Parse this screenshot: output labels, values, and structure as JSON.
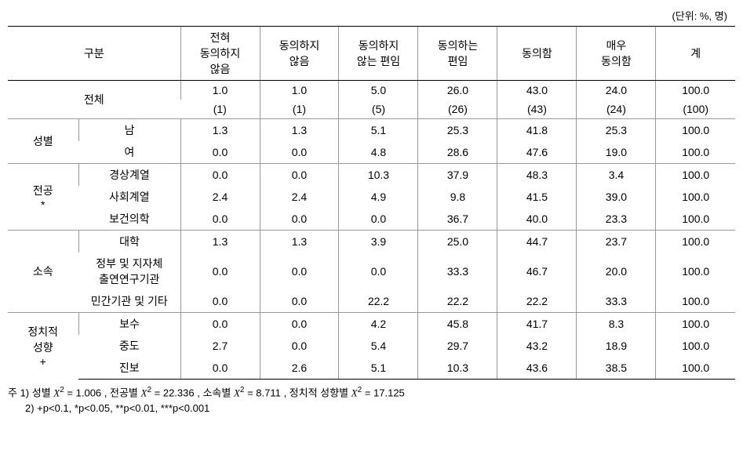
{
  "unit_label": "(단위: %, 명)",
  "headers": {
    "category": "구분",
    "c1": "전혀\n동의하지\n않음",
    "c2": "동의하지\n않음",
    "c3": "동의하지\n않는 편임",
    "c4": "동의하는\n편임",
    "c5": "동의함",
    "c6": "매우\n동의함",
    "c7": "계"
  },
  "total_label": "전체",
  "total_pct": [
    "1.0",
    "1.0",
    "5.0",
    "26.0",
    "43.0",
    "24.0",
    "100.0"
  ],
  "total_n": [
    "(1)",
    "(1)",
    "(5)",
    "(26)",
    "(43)",
    "(24)",
    "(100)"
  ],
  "groups": [
    {
      "label": "성별",
      "rows": [
        {
          "sub": "남",
          "v": [
            "1.3",
            "1.3",
            "5.1",
            "25.3",
            "41.8",
            "25.3",
            "100.0"
          ]
        },
        {
          "sub": "여",
          "v": [
            "0.0",
            "0.0",
            "4.8",
            "28.6",
            "47.6",
            "19.0",
            "100.0"
          ]
        }
      ]
    },
    {
      "label": "전공\n*",
      "rows": [
        {
          "sub": "경상계열",
          "v": [
            "0.0",
            "0.0",
            "10.3",
            "37.9",
            "48.3",
            "3.4",
            "100.0"
          ]
        },
        {
          "sub": "사회계열",
          "v": [
            "2.4",
            "2.4",
            "4.9",
            "9.8",
            "41.5",
            "39.0",
            "100.0"
          ]
        },
        {
          "sub": "보건의학",
          "v": [
            "0.0",
            "0.0",
            "0.0",
            "36.7",
            "40.0",
            "23.3",
            "100.0"
          ]
        }
      ]
    },
    {
      "label": "소속",
      "rows": [
        {
          "sub": "대학",
          "v": [
            "1.3",
            "1.3",
            "3.9",
            "25.0",
            "44.7",
            "23.7",
            "100.0"
          ]
        },
        {
          "sub": "정부 및 지자체\n출연연구기관",
          "v": [
            "0.0",
            "0.0",
            "0.0",
            "33.3",
            "46.7",
            "20.0",
            "100.0"
          ]
        },
        {
          "sub": "민간기관 및 기타",
          "v": [
            "0.0",
            "0.0",
            "22.2",
            "22.2",
            "22.2",
            "33.3",
            "100.0"
          ]
        }
      ]
    },
    {
      "label": "정치적\n성향\n+",
      "rows": [
        {
          "sub": "보수",
          "v": [
            "0.0",
            "0.0",
            "4.2",
            "45.8",
            "41.7",
            "8.3",
            "100.0"
          ]
        },
        {
          "sub": "중도",
          "v": [
            "2.7",
            "0.0",
            "5.4",
            "29.7",
            "43.2",
            "18.9",
            "100.0"
          ]
        },
        {
          "sub": "진보",
          "v": [
            "0.0",
            "2.6",
            "5.1",
            "10.3",
            "43.6",
            "38.5",
            "100.0"
          ]
        }
      ]
    }
  ],
  "footnotes": {
    "l1_prefix": "주 1) 성별 ",
    "l1_x1": "= 1.006 , 전공별 ",
    "l1_x2": "= 22.336 , 소속별 ",
    "l1_x3": "= 8.711 , 정치적 성향별 ",
    "l1_x4": "= 17.125",
    "l2": "2) +p<0.1, *p<0.05, **p<0.01, ***p<0.001"
  }
}
